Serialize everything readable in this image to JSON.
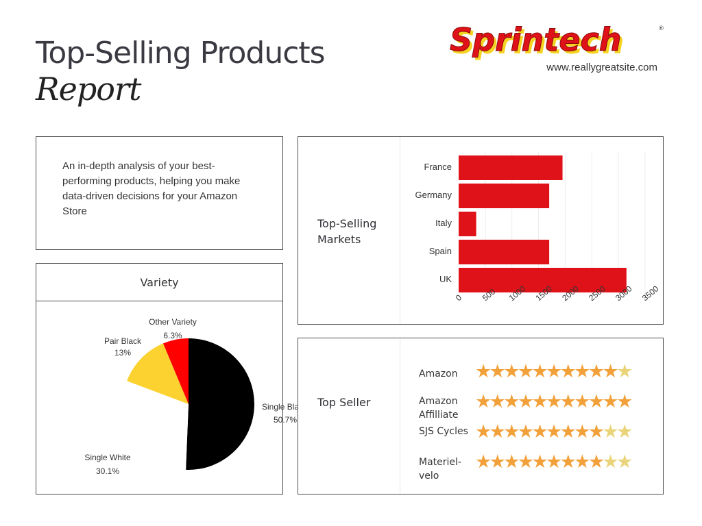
{
  "header": {
    "title": "Top-Selling Products",
    "subtitle": "Report",
    "logo_text": "Sprintech",
    "logo_mark": "®",
    "website": "www.reallygreatsite.com"
  },
  "intro": {
    "text": "An in-depth analysis of your best-performing products, helping you make data-driven decisions for your Amazon Store"
  },
  "colors": {
    "brand_red": "#e01219",
    "brand_yellow": "#f5d320",
    "star_full": "#f2a13a",
    "star_partial": "#ead47a"
  },
  "chart_data": [
    {
      "type": "pie",
      "title": "Variety",
      "slices": [
        {
          "label": "Single Black",
          "value": 50.7,
          "value_label": "50.7%",
          "color": "#000000"
        },
        {
          "label": "Single White",
          "value": 30.1,
          "value_label": "30.1%",
          "color": "#ffffff"
        },
        {
          "label": "Pair Black",
          "value": 13,
          "value_label": "13%",
          "color": "#fbd230"
        },
        {
          "label": "Other Variety",
          "value": 6.3,
          "value_label": "6.3%",
          "color": "#ff0000"
        }
      ]
    },
    {
      "type": "bar",
      "orientation": "horizontal",
      "title": "Top-Selling Markets",
      "categories": [
        "France",
        "Germany",
        "Italy",
        "Spain",
        "UK"
      ],
      "values": [
        1950,
        1700,
        330,
        1700,
        3150
      ],
      "xlim": [
        0,
        3500
      ],
      "xticks": [
        0,
        500,
        1000,
        1500,
        2000,
        2500,
        3000,
        3500
      ],
      "grid": true,
      "bar_color": "#e01219"
    },
    {
      "type": "rating",
      "title": "Top Seller",
      "max_stars": 11,
      "rows": [
        {
          "name": "Amazon",
          "rating": 10
        },
        {
          "name": "Amazon Affilliate",
          "rating": 11
        },
        {
          "name": "SJS Cycles",
          "rating": 9
        },
        {
          "name": "Materiel-velo",
          "rating": 9
        }
      ]
    }
  ]
}
